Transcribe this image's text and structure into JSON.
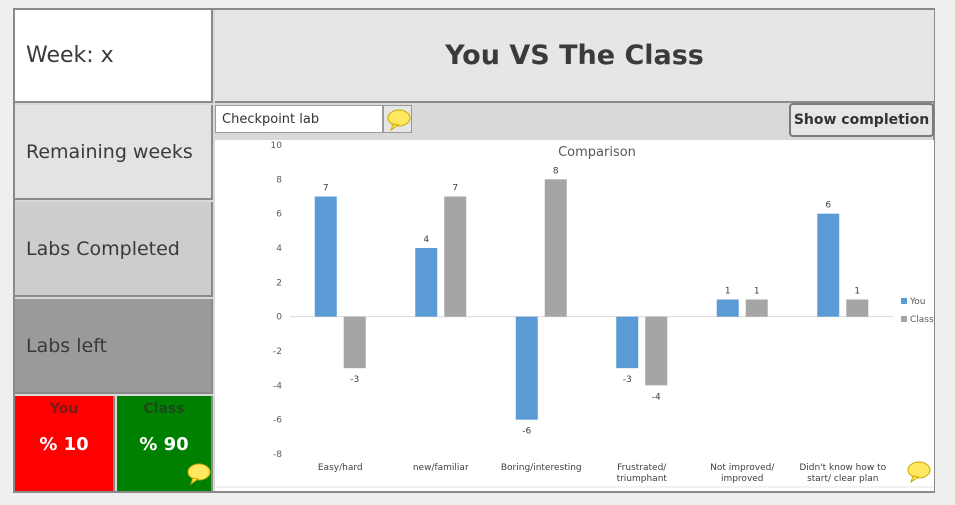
{
  "week_label": "Week: x",
  "header_title": "You VS The Class",
  "sidebar": {
    "remaining": "Remaining weeks",
    "completed": "Labs Completed",
    "left": "Labs left"
  },
  "you_box": {
    "label": "You",
    "value": "% 10"
  },
  "class_box": {
    "label": "Class",
    "value": "% 90"
  },
  "lab_select": {
    "value": "Checkpoint lab"
  },
  "show_completion_label": "Show completion",
  "colors": {
    "you": "#5b9bd5",
    "class": "#a5a5a5",
    "you_box": "#ff0000",
    "class_box": "#008000"
  },
  "chart_data": {
    "type": "bar",
    "title": "Comparison",
    "categories": [
      "Easy/hard",
      "new/familiar",
      "Boring/interesting",
      "Frustrated/ triumphant",
      "Not improved/ improved",
      "Didn't know how to start/ clear plan"
    ],
    "series": [
      {
        "name": "You",
        "values": [
          7,
          4,
          -6,
          -3,
          1,
          6
        ]
      },
      {
        "name": "Class",
        "values": [
          -3,
          7,
          8,
          -4,
          1,
          1
        ]
      }
    ],
    "ylim": [
      -8,
      10
    ],
    "yticks": [
      10,
      8,
      6,
      4,
      2,
      0,
      -2,
      -4,
      -6,
      -8
    ],
    "legend": "right",
    "grid": false
  }
}
